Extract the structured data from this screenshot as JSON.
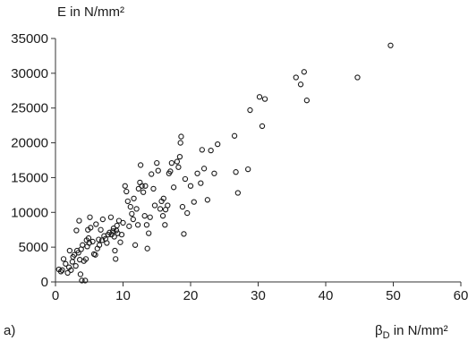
{
  "chart_data": {
    "type": "scatter",
    "panel_label": "a)",
    "ylabel": "E in N/mm²",
    "xlabel": "βD in N/mm²",
    "xlabel_parts": {
      "symbol": "β",
      "subscript": "D",
      "rest": " in N/mm²"
    },
    "xlim": [
      0,
      60
    ],
    "ylim": [
      0,
      35000
    ],
    "xticks": [
      0,
      10,
      20,
      30,
      40,
      50,
      60
    ],
    "yticks": [
      0,
      5000,
      10000,
      15000,
      20000,
      25000,
      30000,
      35000
    ],
    "grid": false,
    "legend": "none",
    "marker": "open-circle",
    "series": [
      {
        "points": [
          [
            0.5,
            1800
          ],
          [
            0.8,
            1500
          ],
          [
            1.0,
            1700
          ],
          [
            1.2,
            3300
          ],
          [
            1.5,
            2600
          ],
          [
            1.8,
            1300
          ],
          [
            2.0,
            2100
          ],
          [
            2.1,
            4500
          ],
          [
            2.3,
            1700
          ],
          [
            2.5,
            2900
          ],
          [
            2.6,
            3600
          ],
          [
            2.8,
            3900
          ],
          [
            3.0,
            2300
          ],
          [
            3.1,
            7400
          ],
          [
            3.2,
            4500
          ],
          [
            3.4,
            4200
          ],
          [
            3.5,
            8800
          ],
          [
            3.6,
            3200
          ],
          [
            3.7,
            1100
          ],
          [
            3.8,
            4700
          ],
          [
            3.9,
            200
          ],
          [
            4.0,
            5300
          ],
          [
            4.2,
            3000
          ],
          [
            4.4,
            200
          ],
          [
            4.5,
            3300
          ],
          [
            4.6,
            6000
          ],
          [
            4.7,
            5100
          ],
          [
            4.8,
            7500
          ],
          [
            4.9,
            6300
          ],
          [
            5.0,
            5600
          ],
          [
            5.1,
            9300
          ],
          [
            5.2,
            7800
          ],
          [
            5.5,
            5800
          ],
          [
            5.7,
            4000
          ],
          [
            5.9,
            3900
          ],
          [
            6.0,
            8300
          ],
          [
            6.2,
            4800
          ],
          [
            6.4,
            6100
          ],
          [
            6.5,
            5300
          ],
          [
            6.7,
            7500
          ],
          [
            6.9,
            6000
          ],
          [
            7.0,
            9000
          ],
          [
            7.2,
            6600
          ],
          [
            7.4,
            6200
          ],
          [
            7.6,
            5600
          ],
          [
            7.8,
            6800
          ],
          [
            8.0,
            7100
          ],
          [
            8.2,
            9300
          ],
          [
            8.3,
            6800
          ],
          [
            8.5,
            7300
          ],
          [
            8.6,
            7700
          ],
          [
            8.7,
            6500
          ],
          [
            8.8,
            4500
          ],
          [
            8.9,
            3300
          ],
          [
            9.0,
            7400
          ],
          [
            9.1,
            8100
          ],
          [
            9.2,
            7000
          ],
          [
            9.4,
            8800
          ],
          [
            9.6,
            5700
          ],
          [
            9.8,
            6800
          ],
          [
            10.0,
            8500
          ],
          [
            10.3,
            13800
          ],
          [
            10.5,
            13000
          ],
          [
            10.7,
            11600
          ],
          [
            10.9,
            8000
          ],
          [
            11.1,
            10800
          ],
          [
            11.3,
            9800
          ],
          [
            11.5,
            9000
          ],
          [
            11.6,
            12000
          ],
          [
            11.8,
            5300
          ],
          [
            12.0,
            10500
          ],
          [
            12.2,
            8200
          ],
          [
            12.3,
            13400
          ],
          [
            12.5,
            14300
          ],
          [
            12.6,
            16800
          ],
          [
            12.8,
            13800
          ],
          [
            13.0,
            12900
          ],
          [
            13.2,
            9500
          ],
          [
            13.3,
            13800
          ],
          [
            13.5,
            8200
          ],
          [
            13.6,
            4800
          ],
          [
            13.8,
            7000
          ],
          [
            14.0,
            9300
          ],
          [
            14.2,
            15500
          ],
          [
            14.5,
            13400
          ],
          [
            14.7,
            11000
          ],
          [
            15.0,
            17100
          ],
          [
            15.2,
            16000
          ],
          [
            15.5,
            10500
          ],
          [
            15.7,
            11600
          ],
          [
            15.9,
            9500
          ],
          [
            16.0,
            12000
          ],
          [
            16.2,
            8200
          ],
          [
            16.3,
            10400
          ],
          [
            16.6,
            11000
          ],
          [
            16.8,
            15600
          ],
          [
            17.0,
            15900
          ],
          [
            17.2,
            17100
          ],
          [
            17.5,
            13600
          ],
          [
            18.0,
            17300
          ],
          [
            18.2,
            16500
          ],
          [
            18.4,
            18000
          ],
          [
            18.5,
            20000
          ],
          [
            18.6,
            20900
          ],
          [
            18.8,
            10800
          ],
          [
            19.0,
            6900
          ],
          [
            19.2,
            14800
          ],
          [
            19.5,
            9900
          ],
          [
            20.0,
            13800
          ],
          [
            20.5,
            11500
          ],
          [
            21.0,
            15600
          ],
          [
            21.5,
            14200
          ],
          [
            21.7,
            19000
          ],
          [
            22.0,
            16300
          ],
          [
            22.5,
            11800
          ],
          [
            23.0,
            18900
          ],
          [
            23.5,
            15600
          ],
          [
            24.0,
            19800
          ],
          [
            26.5,
            21000
          ],
          [
            26.7,
            15800
          ],
          [
            27.0,
            12800
          ],
          [
            28.5,
            16200
          ],
          [
            28.8,
            24700
          ],
          [
            30.2,
            26600
          ],
          [
            30.6,
            22400
          ],
          [
            31.0,
            26300
          ],
          [
            35.6,
            29400
          ],
          [
            36.3,
            28400
          ],
          [
            36.8,
            30200
          ],
          [
            37.2,
            26100
          ],
          [
            44.7,
            29400
          ],
          [
            49.6,
            34000
          ]
        ]
      }
    ]
  }
}
